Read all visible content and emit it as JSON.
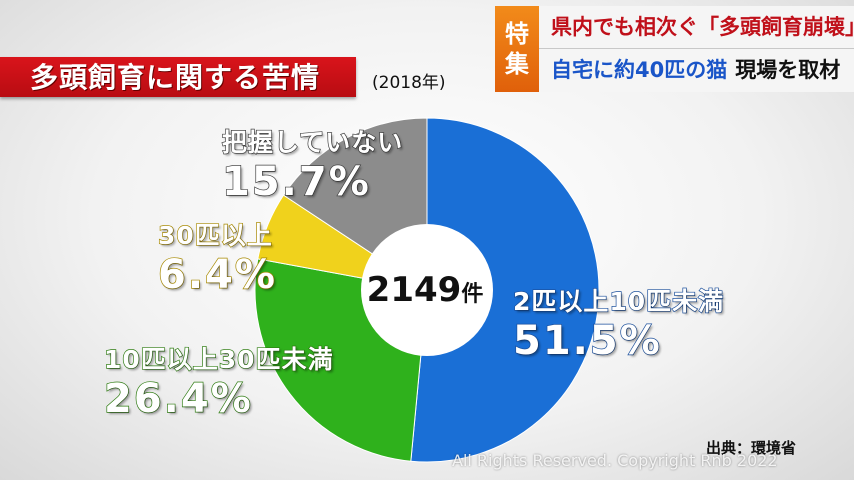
{
  "header": {
    "badge_chars": [
      "特",
      "集"
    ],
    "line1": "県内でも相次ぐ「多頭飼育崩壊」",
    "line2_blue": "自宅に約40匹の猫",
    "line2_black": "現場を取材"
  },
  "colors": {
    "title_band": "#c8101a",
    "badge": "#ee7a12",
    "blue": "#1a6fd6",
    "green": "#2fb11c",
    "yellow": "#f0d21c",
    "gray": "#8c8c8c"
  },
  "chart_data": {
    "type": "pie",
    "title": "多頭飼育に関する苦情",
    "subtitle": "(2018年)",
    "center_label": {
      "value": "2149",
      "unit": "件"
    },
    "slices": [
      {
        "label": "2匹以上10匹未満",
        "value": 51.5,
        "display": "51.5%",
        "color": "#1a6fd6"
      },
      {
        "label": "10匹以上30匹未満",
        "value": 26.4,
        "display": "26.4%",
        "color": "#2fb11c"
      },
      {
        "label": "30匹以上",
        "value": 6.4,
        "display": "6.4%",
        "color": "#f0d21c"
      },
      {
        "label": "把握していない",
        "value": 15.7,
        "display": "15.7%",
        "color": "#8c8c8c"
      }
    ],
    "source": "出典：環境省"
  },
  "watermark": "All Rights Reserved. Copyright Rnb 2022"
}
